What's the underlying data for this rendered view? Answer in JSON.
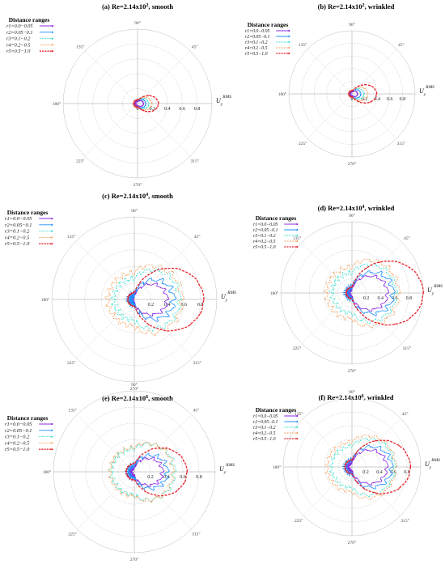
{
  "chart_data": [
    {
      "panel": "(a)",
      "type": "polar-line",
      "title": "(a) Re=2.14x10",
      "title_exp": "2",
      "title_suffix": ", smooth",
      "radial_ticks": [
        "0",
        "0.2",
        "0.4",
        "0.6",
        "0.8"
      ],
      "rlim": [
        0,
        1.0
      ],
      "angle_labels": [
        "90°",
        "45°",
        "135°",
        "180°",
        "225°",
        "270°",
        "315°"
      ],
      "radial_label": "U",
      "radial_label_sub": "y",
      "radial_label_sup": "RMS",
      "legend": {
        "title": "Distance ranges",
        "placement": "top-left"
      },
      "series": [
        {
          "name": "r1=0.0−0.05",
          "color": "#8a2be2",
          "r0": 0.03,
          "a": 0.05,
          "spread": 2.0,
          "jit": 0.004,
          "style": "solid"
        },
        {
          "name": "r2=0.05−0.1",
          "color": "#1e90ff",
          "r0": 0.05,
          "a": 0.06,
          "spread": 2.0,
          "jit": 0.004,
          "style": "solid"
        },
        {
          "name": "r3=0.1−0.2",
          "color": "#40e0d0",
          "r0": 0.05,
          "a": 0.1,
          "spread": 2.0,
          "jit": 0.004,
          "style": "dash"
        },
        {
          "name": "r4=0.2−0.5",
          "color": "#f4a460",
          "r0": 0.05,
          "a": 0.14,
          "spread": 2.0,
          "jit": 0.004,
          "style": "dash"
        },
        {
          "name": "r5=0.5−1.0",
          "color": "#e8202a",
          "r0": 0.05,
          "a": 0.23,
          "spread": 2.6,
          "jit": 0.002,
          "style": "dashbold"
        }
      ]
    },
    {
      "panel": "(b)",
      "type": "polar-line",
      "title": "(b) Re=2.14x10",
      "title_exp": "2",
      "title_suffix": ", wrinkled",
      "radial_ticks": [
        "0",
        "0.2",
        "0.4",
        "0.6",
        "0.8"
      ],
      "rlim": [
        0,
        1.0
      ],
      "angle_labels": [
        "90°",
        "45°",
        "135°",
        "180°",
        "225°",
        "270°",
        "315°"
      ],
      "radial_label": "U",
      "radial_label_sub": "y",
      "radial_label_sup": "RMS",
      "legend": {
        "title": "Distance ranges",
        "placement": "top-left"
      },
      "series": [
        {
          "name": "r1=0.0−0.05",
          "color": "#8a2be2",
          "r0": 0.03,
          "a": 0.06,
          "spread": 2.0,
          "jit": 0.004,
          "style": "solid"
        },
        {
          "name": "r2=0.05−0.1",
          "color": "#1e90ff",
          "r0": 0.05,
          "a": 0.09,
          "spread": 2.0,
          "jit": 0.004,
          "style": "solid"
        },
        {
          "name": "r3=0.1−0.2",
          "color": "#40e0d0",
          "r0": 0.05,
          "a": 0.14,
          "spread": 2.0,
          "jit": 0.004,
          "style": "dash"
        },
        {
          "name": "r4=0.2−0.5",
          "color": "#f4a460",
          "r0": 0.05,
          "a": 0.2,
          "spread": 2.0,
          "jit": 0.004,
          "style": "dash"
        },
        {
          "name": "r5=0.5−1.0",
          "color": "#e8202a",
          "r0": 0.05,
          "a": 0.34,
          "spread": 2.6,
          "jit": 0.002,
          "style": "dashbold"
        }
      ]
    },
    {
      "panel": "(c)",
      "type": "polar-line",
      "title": "(c) Re=2.14x10",
      "title_exp": "4",
      "title_suffix": ", smooth",
      "radial_ticks": [
        "0",
        "0.2",
        "0.4",
        "0.6",
        "0.8"
      ],
      "rlim": [
        0,
        1.0
      ],
      "angle_labels": [
        "90°",
        "45°",
        "135°",
        "180°",
        "225°",
        "270°",
        "315°"
      ],
      "radial_label": "U",
      "radial_label_sub": "y",
      "radial_label_sup": "RMS",
      "legend": {
        "title": "Distance ranges",
        "placement": "top-left"
      },
      "series": [
        {
          "name": "r1=0.0−0.05",
          "color": "#8a2be2",
          "r0": 0.04,
          "a": 0.36,
          "spread": 1.4,
          "jit": 0.02,
          "style": "solid"
        },
        {
          "name": "r2=0.05−0.1",
          "color": "#1e90ff",
          "r0": 0.06,
          "a": 0.42,
          "spread": 1.2,
          "jit": 0.03,
          "style": "solid"
        },
        {
          "name": "r3=0.1−0.2",
          "color": "#40e0d0",
          "r0": 0.25,
          "a": 0.3,
          "spread": 0.9,
          "jit": 0.025,
          "style": "dash"
        },
        {
          "name": "r4=0.2−0.5",
          "color": "#f4a460",
          "r0": 0.32,
          "a": 0.26,
          "spread": 0.8,
          "jit": 0.025,
          "style": "dash"
        },
        {
          "name": "r5=0.5−1.0",
          "color": "#e8202a",
          "r0": 0.08,
          "a": 0.76,
          "spread": 1.5,
          "jit": 0.004,
          "style": "dashbold"
        }
      ]
    },
    {
      "panel": "(d)",
      "type": "polar-line",
      "title": "(d) Re=2.14x10",
      "title_exp": "4",
      "title_suffix": ", wrinkled",
      "radial_ticks": [
        "0",
        "0.2",
        "0.4",
        "0.6",
        "0.8"
      ],
      "rlim": [
        0,
        1.0
      ],
      "angle_labels": [
        "90°",
        "45°",
        "135°",
        "180°",
        "225°",
        "270°",
        "315°"
      ],
      "radial_label": "U",
      "radial_label_sub": "y",
      "radial_label_sup": "RMS",
      "legend": {
        "title": "Distance ranges",
        "placement": "top-left"
      },
      "series": [
        {
          "name": "r1=0.0−0.05",
          "color": "#8a2be2",
          "r0": 0.05,
          "a": 0.45,
          "spread": 1.3,
          "jit": 0.02,
          "style": "solid"
        },
        {
          "name": "r2=0.05−0.1",
          "color": "#1e90ff",
          "r0": 0.08,
          "a": 0.5,
          "spread": 1.2,
          "jit": 0.03,
          "style": "solid"
        },
        {
          "name": "r3=0.1−0.2",
          "color": "#40e0d0",
          "r0": 0.28,
          "a": 0.34,
          "spread": 0.9,
          "jit": 0.025,
          "style": "dash"
        },
        {
          "name": "r4=0.2−0.5",
          "color": "#f4a460",
          "r0": 0.36,
          "a": 0.3,
          "spread": 0.8,
          "jit": 0.025,
          "style": "dash"
        },
        {
          "name": "r5=0.5−1.0",
          "color": "#e8202a",
          "r0": 0.08,
          "a": 0.92,
          "spread": 1.5,
          "jit": 0.004,
          "style": "dashbold"
        }
      ]
    },
    {
      "panel": "(e)",
      "type": "polar-line",
      "title": "(e) Re=2.14x10",
      "title_exp": "6",
      "title_suffix": ", smooth",
      "radial_ticks": [
        "0",
        "0.2",
        "0.4",
        "0.6",
        "0.8"
      ],
      "rlim": [
        0,
        1.0
      ],
      "angle_labels": [
        "90°",
        "45°",
        "135°",
        "180°",
        "225°",
        "270°",
        "315°"
      ],
      "radial_label": "U",
      "radial_label_sub": "y",
      "radial_label_sup": "RMS",
      "legend": {
        "title": "Distance ranges",
        "placement": "top-left"
      },
      "series": [
        {
          "name": "r1=0.0−0.05",
          "color": "#8a2be2",
          "r0": 0.05,
          "a": 0.3,
          "spread": 1.4,
          "jit": 0.02,
          "style": "solid"
        },
        {
          "name": "r2=0.05−0.1",
          "color": "#1e90ff",
          "r0": 0.08,
          "a": 0.33,
          "spread": 1.3,
          "jit": 0.025,
          "style": "solid"
        },
        {
          "name": "r3=0.1−0.2",
          "color": "#40e0d0",
          "r0": 0.28,
          "a": 0.22,
          "spread": 0.9,
          "jit": 0.02,
          "style": "dash"
        },
        {
          "name": "r4=0.2−0.5",
          "color": "#f4a460",
          "r0": 0.3,
          "a": 0.18,
          "spread": 0.8,
          "jit": 0.02,
          "style": "dash"
        },
        {
          "name": "r5=0.5−1.0",
          "color": "#e8202a",
          "r0": 0.1,
          "a": 0.55,
          "spread": 1.6,
          "jit": 0.004,
          "style": "dashbold"
        }
      ]
    },
    {
      "panel": "(f)",
      "type": "polar-line",
      "title": "(f) Re=2.14x10",
      "title_exp": "6",
      "title_suffix": ", wrinkled",
      "radial_ticks": [
        "0",
        "0.2",
        "0.4",
        "0.6",
        "0.8"
      ],
      "rlim": [
        0,
        1.0
      ],
      "angle_labels": [
        "90°",
        "45°",
        "135°",
        "180°",
        "225°",
        "270°",
        "315°"
      ],
      "radial_label": "U",
      "radial_label_sub": "y",
      "radial_label_sup": "RMS",
      "legend": {
        "title": "Distance ranges",
        "placement": "top-left"
      },
      "series": [
        {
          "name": "r1=0.0−0.05",
          "color": "#8a2be2",
          "r0": 0.06,
          "a": 0.45,
          "spread": 1.3,
          "jit": 0.02,
          "style": "solid"
        },
        {
          "name": "r2=0.05−0.1",
          "color": "#1e90ff",
          "r0": 0.1,
          "a": 0.48,
          "spread": 1.2,
          "jit": 0.025,
          "style": "solid"
        },
        {
          "name": "r3=0.1−0.2",
          "color": "#40e0d0",
          "r0": 0.3,
          "a": 0.32,
          "spread": 0.9,
          "jit": 0.02,
          "style": "dash"
        },
        {
          "name": "r4=0.2−0.5",
          "color": "#f4a460",
          "r0": 0.36,
          "a": 0.28,
          "spread": 0.8,
          "jit": 0.02,
          "style": "dash"
        },
        {
          "name": "r5=0.5−1.0",
          "color": "#e8202a",
          "r0": 0.1,
          "a": 0.75,
          "spread": 1.5,
          "jit": 0.004,
          "style": "dashbold"
        }
      ]
    }
  ]
}
